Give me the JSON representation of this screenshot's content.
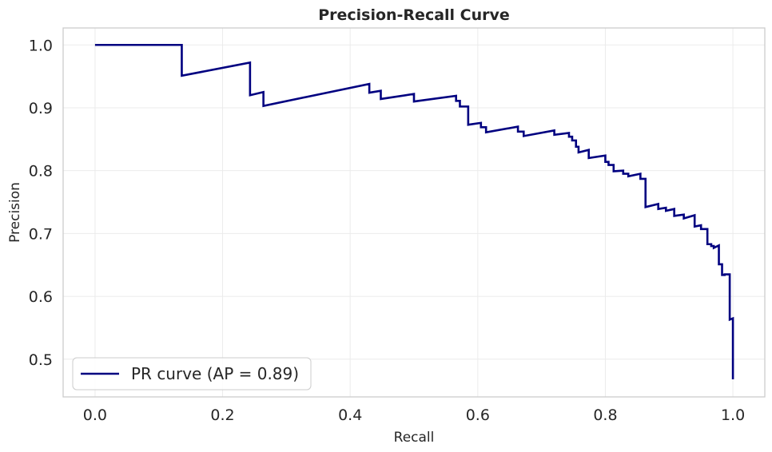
{
  "chart_data": {
    "type": "line",
    "title": "Precision-Recall Curve",
    "xlabel": "Recall",
    "ylabel": "Precision",
    "xlim": [
      -0.05,
      1.05
    ],
    "ylim": [
      0.44,
      1.027
    ],
    "x_ticks": [
      0.0,
      0.2,
      0.4,
      0.6,
      0.8,
      1.0
    ],
    "x_tick_labels": [
      "0.0",
      "0.2",
      "0.4",
      "0.6",
      "0.8",
      "1.0"
    ],
    "y_ticks": [
      0.5,
      0.6,
      0.7,
      0.8,
      0.9,
      1.0
    ],
    "y_tick_labels": [
      "0.5",
      "0.6",
      "0.7",
      "0.8",
      "0.9",
      "1.0"
    ],
    "grid": true,
    "legend_position": "lower-left",
    "series": [
      {
        "name": "PR curve (AP = 0.89)",
        "color": "#000080",
        "step": "post",
        "x": [
          0.0,
          0.136,
          0.136,
          0.243,
          0.243,
          0.264,
          0.264,
          0.43,
          0.43,
          0.448,
          0.448,
          0.5,
          0.5,
          0.566,
          0.566,
          0.572,
          0.572,
          0.585,
          0.585,
          0.605,
          0.605,
          0.613,
          0.613,
          0.663,
          0.663,
          0.672,
          0.672,
          0.72,
          0.72,
          0.743,
          0.743,
          0.748,
          0.748,
          0.754,
          0.754,
          0.758,
          0.758,
          0.774,
          0.774,
          0.8,
          0.8,
          0.805,
          0.805,
          0.813,
          0.813,
          0.828,
          0.828,
          0.836,
          0.836,
          0.855,
          0.855,
          0.863,
          0.863,
          0.883,
          0.883,
          0.895,
          0.895,
          0.908,
          0.908,
          0.923,
          0.923,
          0.94,
          0.94,
          0.95,
          0.95,
          0.96,
          0.96,
          0.966,
          0.966,
          0.97,
          0.97,
          0.978,
          0.978,
          0.983,
          0.983,
          0.987,
          0.987,
          0.995,
          0.995,
          1.0,
          1.0
        ],
        "y": [
          1.0,
          1.0,
          0.951,
          0.972,
          0.92,
          0.925,
          0.903,
          0.938,
          0.924,
          0.927,
          0.914,
          0.922,
          0.91,
          0.919,
          0.911,
          0.911,
          0.902,
          0.902,
          0.873,
          0.876,
          0.869,
          0.869,
          0.861,
          0.87,
          0.862,
          0.862,
          0.855,
          0.864,
          0.857,
          0.86,
          0.854,
          0.854,
          0.848,
          0.848,
          0.838,
          0.838,
          0.829,
          0.833,
          0.82,
          0.824,
          0.814,
          0.814,
          0.809,
          0.809,
          0.799,
          0.8,
          0.795,
          0.795,
          0.791,
          0.795,
          0.787,
          0.787,
          0.742,
          0.747,
          0.739,
          0.741,
          0.736,
          0.739,
          0.728,
          0.73,
          0.724,
          0.729,
          0.711,
          0.713,
          0.707,
          0.707,
          0.683,
          0.683,
          0.68,
          0.68,
          0.677,
          0.681,
          0.651,
          0.651,
          0.634,
          0.634,
          0.635,
          0.635,
          0.563,
          0.565,
          0.468
        ]
      }
    ]
  }
}
